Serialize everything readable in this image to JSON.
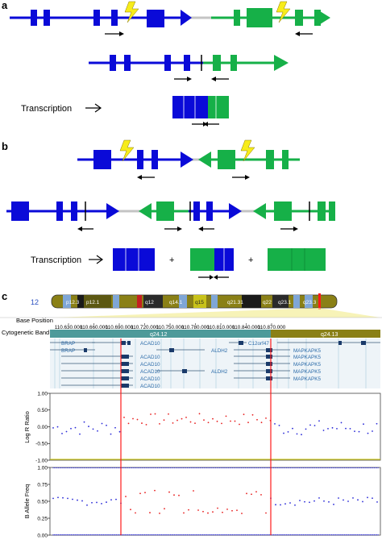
{
  "panels": {
    "a": {
      "letter": "a",
      "transcription_label": "Transcription"
    },
    "b": {
      "letter": "b",
      "transcription_label": "Transcription",
      "plus": "+"
    },
    "c": {
      "letter": "c"
    }
  },
  "colors": {
    "gene_blue": "#0a0ad8",
    "gene_green": "#16b048",
    "intergenic_gray": "#c4c4c4",
    "bolt_yellow": "#f7ec1a",
    "breakpoint_red": "#ff1a1a",
    "band_teal": "#4d9a9a",
    "band_olive": "#8a8016"
  },
  "ideogram": {
    "chromosome": "12",
    "bands": [
      "p12.3",
      "p12.1",
      "q12",
      "q14.1",
      "q15",
      "q21.31",
      "q22",
      "q23.1",
      "q23.3"
    ]
  },
  "browser": {
    "base_position_label": "Base Position",
    "cytogenetic_band_label": "Cytogenetic Band",
    "positions": [
      "110.630.000",
      "110.660.000",
      "110.690.000",
      "110.720.000",
      "110.750.000",
      "110.780.000",
      "110.810.000",
      "110.840.000",
      "110.870.000"
    ],
    "cyto_band_main": "q24.12",
    "cyto_band_right": "q24.13",
    "genes_left": [
      "BRAP",
      "BRAP"
    ],
    "genes_mid": [
      "ACAD10",
      "ACAD10",
      "ACAD10",
      "ACAD10",
      "ACAD10",
      "ACAD10"
    ],
    "genes_aldh": [
      "ALDH2",
      "ALDH2"
    ],
    "genes_c12": "C12orf47",
    "genes_right": [
      "MAPKAPK5",
      "MAPKAPK5",
      "MAPKAPK5",
      "MAPKAPK5",
      "MAPKAPK5"
    ]
  },
  "plots": {
    "log_r": {
      "ylabel": "Log R Ratio",
      "ticks": [
        "1.00",
        "0.50",
        "0.00",
        "-0.50",
        "-1.00"
      ],
      "ylim": [
        -1,
        1
      ]
    },
    "baf": {
      "ylabel": "B Allele Freq",
      "ticks": [
        "1.00",
        "0.75",
        "0.50",
        "0.25",
        "0.00"
      ],
      "ylim": [
        0,
        1
      ]
    }
  }
}
